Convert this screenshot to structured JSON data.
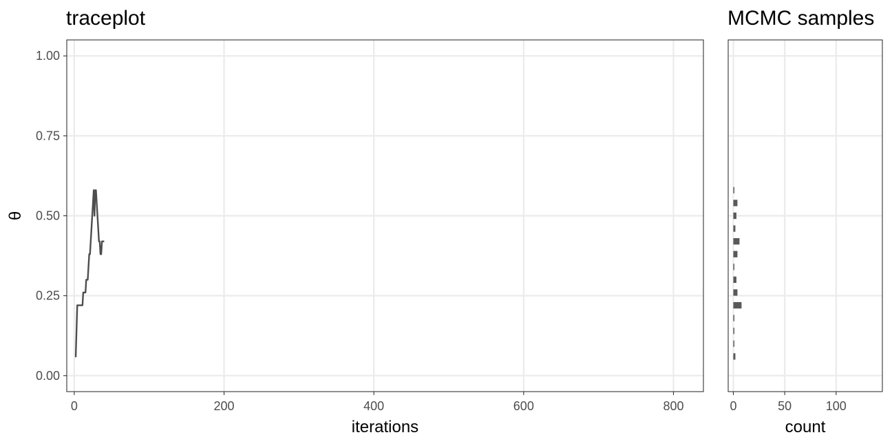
{
  "chart_data": [
    {
      "type": "line",
      "title": "traceplot",
      "xlabel": "iterations",
      "ylabel": "θ",
      "xlim": [
        -10,
        840
      ],
      "ylim": [
        -0.05,
        1.05
      ],
      "xticks": [
        "0",
        "200",
        "400",
        "600",
        "800"
      ],
      "yticks": [
        "0.00",
        "0.25",
        "0.50",
        "0.75",
        "1.00"
      ],
      "grid": true,
      "color": "#4d4d4d",
      "series": [
        {
          "x": [
            1,
            2,
            3,
            4,
            5,
            6,
            7,
            8,
            9,
            10,
            11,
            12,
            13,
            14,
            15,
            16,
            17,
            18,
            19,
            20,
            21,
            22,
            23,
            24,
            25,
            26,
            27,
            28,
            29,
            30,
            31,
            32,
            33,
            34,
            35,
            36,
            37,
            38,
            39,
            40
          ],
          "y": [
            0.06,
            0.06,
            0.14,
            0.22,
            0.22,
            0.22,
            0.22,
            0.22,
            0.22,
            0.22,
            0.22,
            0.26,
            0.26,
            0.26,
            0.26,
            0.3,
            0.3,
            0.3,
            0.34,
            0.38,
            0.38,
            0.42,
            0.46,
            0.5,
            0.54,
            0.58,
            0.5,
            0.58,
            0.58,
            0.54,
            0.5,
            0.46,
            0.42,
            0.42,
            0.38,
            0.38,
            0.42,
            0.42,
            0.42,
            0.42
          ]
        }
      ]
    },
    {
      "type": "bar",
      "orientation": "horizontal",
      "title": "MCMC samples",
      "xlabel": "count",
      "ylabel": "",
      "xlim": [
        -5,
        145
      ],
      "ylim": [
        -0.05,
        1.05
      ],
      "xticks": [
        "0",
        "50",
        "100"
      ],
      "grid": true,
      "color": "#595959",
      "bin_width": 0.02,
      "bins": [
        0.06,
        0.1,
        0.14,
        0.18,
        0.22,
        0.26,
        0.3,
        0.34,
        0.38,
        0.42,
        0.46,
        0.5,
        0.54,
        0.58
      ],
      "counts": [
        2,
        1,
        1,
        1,
        8,
        4,
        3,
        1,
        4,
        6,
        2,
        3,
        4,
        1
      ]
    }
  ]
}
